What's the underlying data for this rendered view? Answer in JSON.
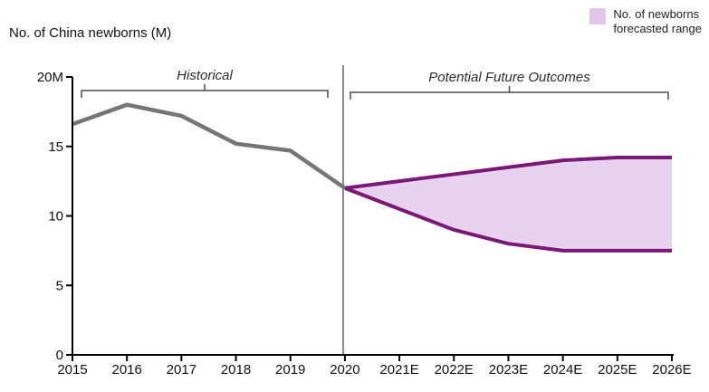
{
  "title": "No. of China newborns (M)",
  "legend": {
    "label_line1": "No. of newborns",
    "label_line2": "forecasted range",
    "swatch_color": "#e2c6e8"
  },
  "colors": {
    "historical_line": "#757575",
    "forecast_line": "#7b1777",
    "forecast_fill": "#e7d2ef",
    "divider": "#8c8c8c",
    "axis": "#000000",
    "bracket": "#4d4d4d",
    "label_text": "#111111",
    "annotation_text": "#2b2b2b"
  },
  "chart_data": {
    "type": "area",
    "title": "No. of China newborns (M)",
    "x_labels": [
      "2015",
      "2016",
      "2017",
      "2018",
      "2019",
      "2020",
      "2021E",
      "2022E",
      "2023E",
      "2024E",
      "2025E",
      "2026E"
    ],
    "y_ticks": [
      0,
      5,
      10,
      15,
      20
    ],
    "y_tick_labels": [
      "0",
      "5",
      "10",
      "15",
      "20M"
    ],
    "ylim": [
      0,
      20
    ],
    "grid": false,
    "legend_position": "top-right",
    "legend": [
      "No. of newborns forecasted range"
    ],
    "annotations": [
      "Historical",
      "Potential Future Outcomes"
    ],
    "series": [
      {
        "name": "Historical newborns",
        "style": "gray-line",
        "x": [
          "2015",
          "2016",
          "2017",
          "2018",
          "2019",
          "2020"
        ],
        "values": [
          16.6,
          18.0,
          17.2,
          15.2,
          14.7,
          12.0
        ]
      },
      {
        "name": "Forecast upper bound",
        "style": "purple-line",
        "x": [
          "2020",
          "2021E",
          "2022E",
          "2023E",
          "2024E",
          "2025E",
          "2026E"
        ],
        "values": [
          12.0,
          12.5,
          13.0,
          13.5,
          14.0,
          14.2,
          14.2
        ]
      },
      {
        "name": "Forecast lower bound",
        "style": "purple-line",
        "x": [
          "2020",
          "2021E",
          "2022E",
          "2023E",
          "2024E",
          "2025E",
          "2026E"
        ],
        "values": [
          12.0,
          10.5,
          9.0,
          8.0,
          7.5,
          7.5,
          7.5
        ]
      }
    ]
  }
}
